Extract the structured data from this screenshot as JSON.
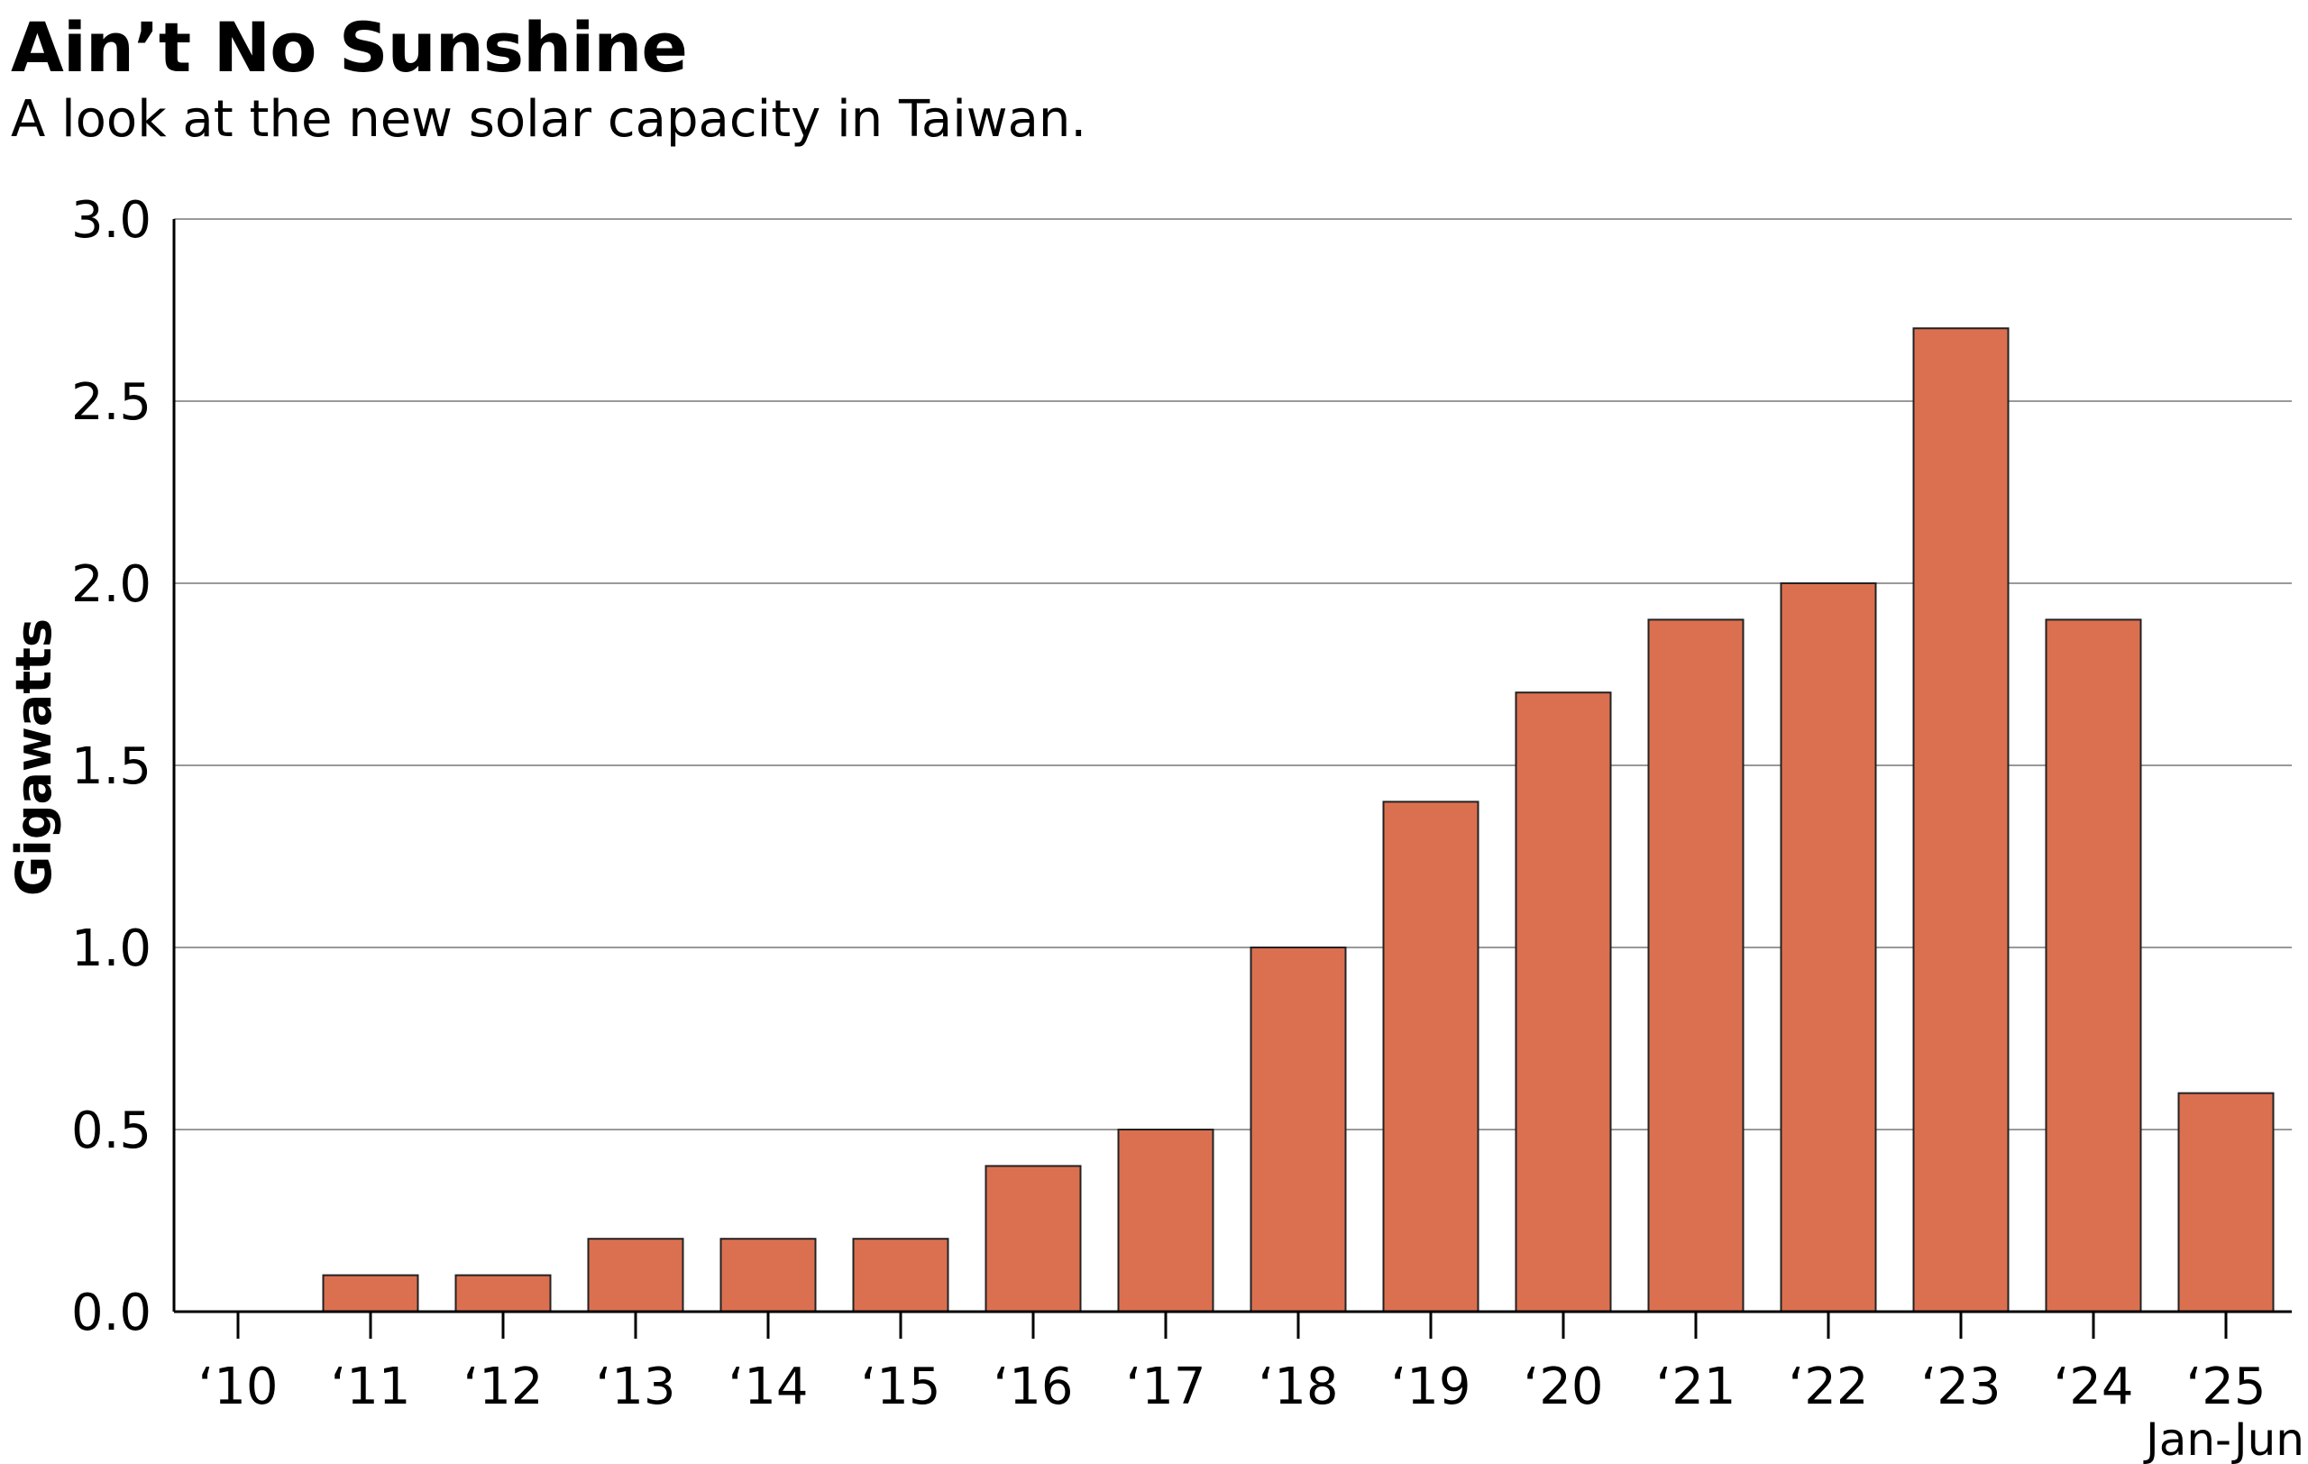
{
  "chart_data": {
    "type": "bar",
    "title": "Ain’t No Sunshine",
    "subtitle": "A look at the new solar capacity in Taiwan.",
    "xlabel": "",
    "ylabel": "Gigawatts",
    "categories": [
      "‘10",
      "‘11",
      "‘12",
      "‘13",
      "‘14",
      "‘15",
      "‘16",
      "‘17",
      "‘18",
      "‘19",
      "‘20",
      "‘21",
      "‘22",
      "‘23",
      "‘24",
      "‘25"
    ],
    "category_note": {
      "index": 15,
      "text": "Jan-Jun"
    },
    "values": [
      0,
      0.1,
      0.1,
      0.2,
      0.2,
      0.2,
      0.4,
      0.5,
      1.0,
      1.4,
      1.7,
      1.9,
      2.0,
      2.7,
      1.9,
      0.6
    ],
    "ylim": [
      0,
      3.0
    ],
    "yticks": [
      "0.0",
      "0.5",
      "1.0",
      "1.5",
      "2.0",
      "2.5",
      "3.0"
    ],
    "grid": true,
    "legend": "none",
    "bar_color": "#DB7050",
    "edge_color": "#222222"
  }
}
